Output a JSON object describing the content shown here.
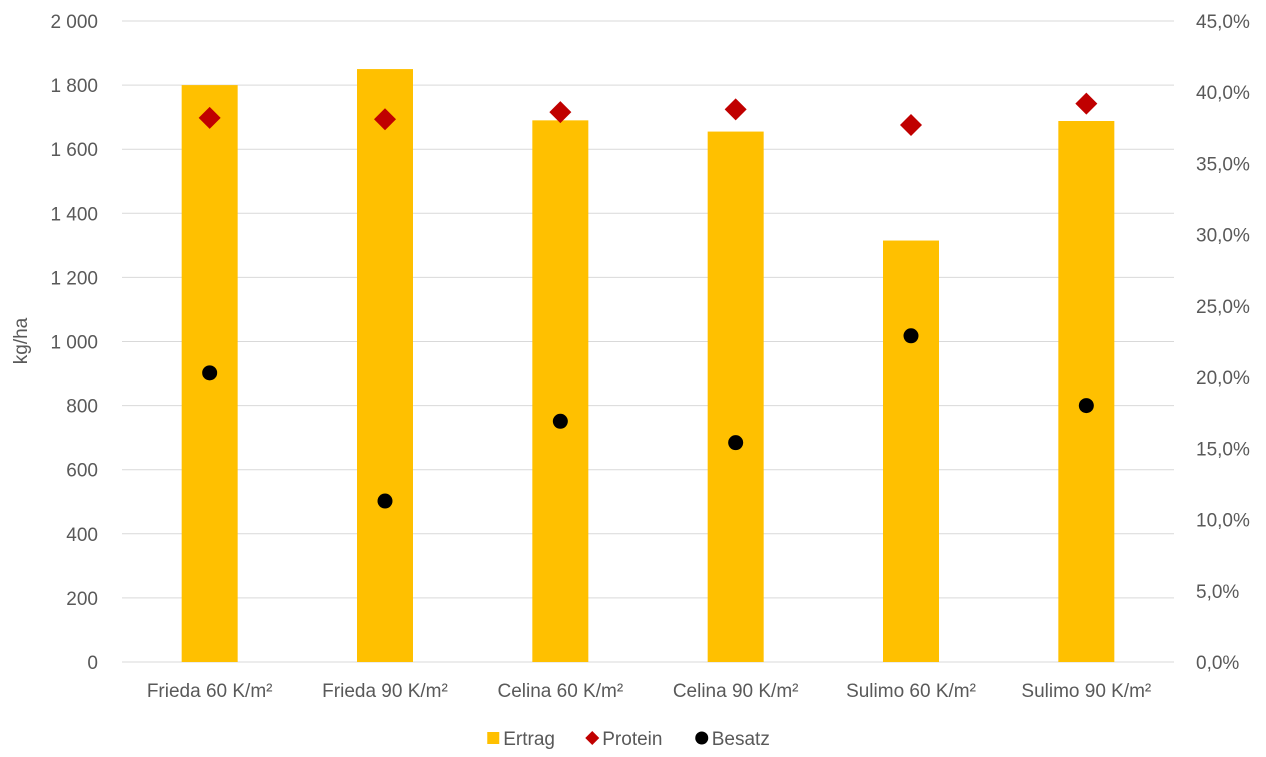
{
  "chart_data": {
    "type": "bar",
    "categories": [
      "Frieda 60 K/m²",
      "Frieda 90 K/m²",
      "Celina 60 K/m²",
      "Celina 90 K/m²",
      "Sulimo 60 K/m²",
      "Sulimo 90 K/m²"
    ],
    "series": [
      {
        "name": "Ertrag",
        "type": "bar",
        "axis": "left",
        "color": "#FFC000",
        "values": [
          1800,
          1850,
          1690,
          1655,
          1315,
          1688
        ]
      },
      {
        "name": "Protein",
        "type": "scatter",
        "marker": "diamond",
        "axis": "right",
        "color": "#C00000",
        "values": [
          0.382,
          0.381,
          0.386,
          0.388,
          0.377,
          0.392
        ]
      },
      {
        "name": "Besatz",
        "type": "scatter",
        "marker": "circle",
        "axis": "right",
        "color": "#000000",
        "values": [
          0.203,
          0.113,
          0.169,
          0.154,
          0.229,
          0.18
        ]
      }
    ],
    "ylabel": "kg/ha",
    "ylim": [
      0,
      2000
    ],
    "y2lim": [
      0,
      0.45
    ],
    "yticks": [
      "0",
      "200",
      "400",
      "600",
      "800",
      "1 000",
      "1 200",
      "1 400",
      "1 600",
      "1 800",
      "2 000"
    ],
    "y2ticks": [
      "0,0%",
      "5,0%",
      "10,0%",
      "15,0%",
      "20,0%",
      "25,0%",
      "30,0%",
      "35,0%",
      "40,0%",
      "45,0%"
    ],
    "grid": true,
    "legend": "bottom"
  }
}
